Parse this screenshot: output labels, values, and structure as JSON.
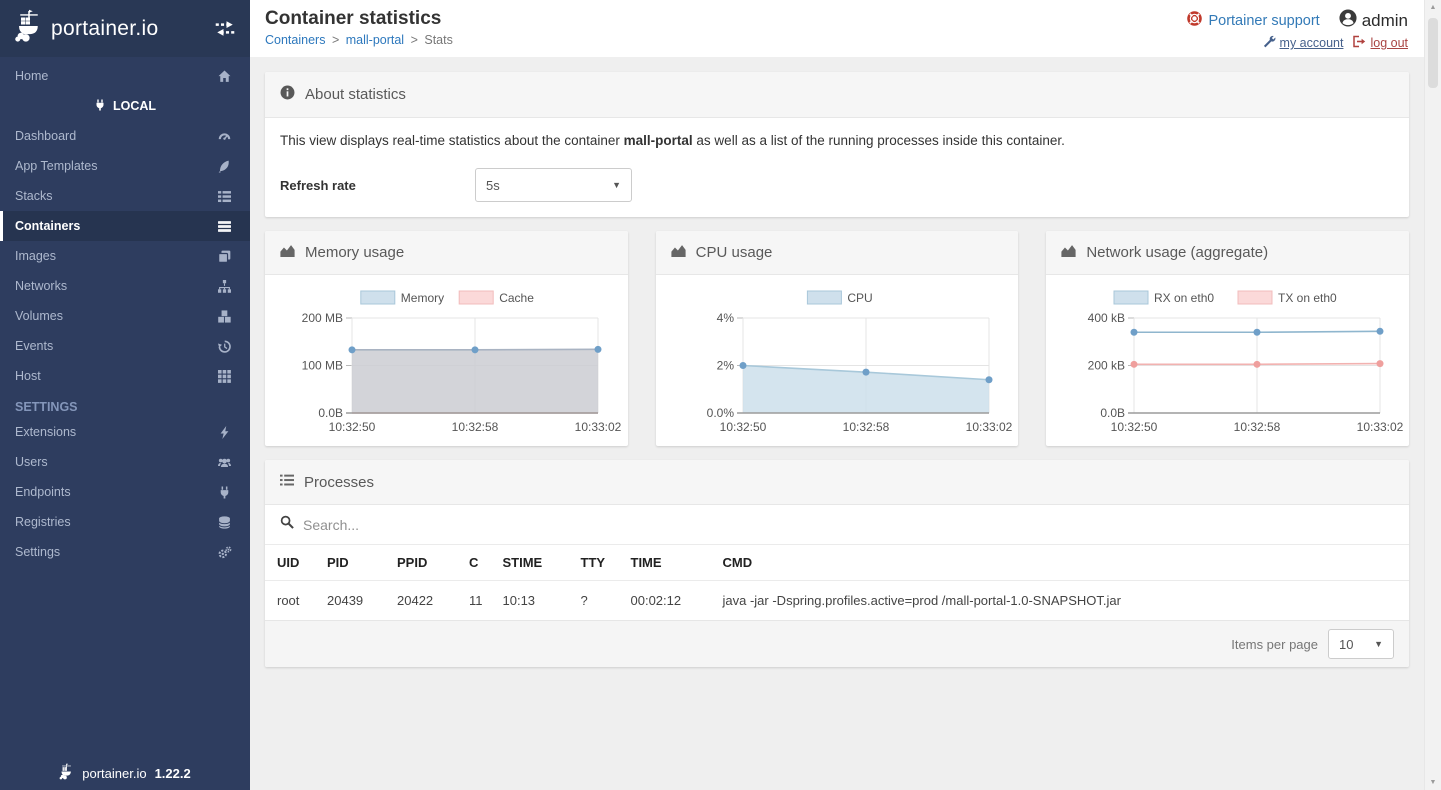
{
  "colors": {
    "sidebar_bg": "#2e3d5f",
    "sidebar_active_bg": "#263450",
    "link_blue": "#337ab7",
    "logout_red": "#a94442",
    "support_red": "#c0392b",
    "panel_header_bg": "#f6f6f6"
  },
  "sidebar": {
    "logo_text": "portainer.io",
    "version": "1.22.2",
    "items": [
      {
        "type": "item",
        "label": "Home",
        "icon": "home"
      },
      {
        "type": "endpoint",
        "label": "LOCAL",
        "icon": "plug"
      },
      {
        "type": "item",
        "label": "Dashboard",
        "icon": "tachometer"
      },
      {
        "type": "item",
        "label": "App Templates",
        "icon": "rocket"
      },
      {
        "type": "item",
        "label": "Stacks",
        "icon": "th-list"
      },
      {
        "type": "item",
        "label": "Containers",
        "icon": "server",
        "active": true
      },
      {
        "type": "item",
        "label": "Images",
        "icon": "copy"
      },
      {
        "type": "item",
        "label": "Networks",
        "icon": "sitemap"
      },
      {
        "type": "item",
        "label": "Volumes",
        "icon": "cubes"
      },
      {
        "type": "item",
        "label": "Events",
        "icon": "history"
      },
      {
        "type": "item",
        "label": "Host",
        "icon": "th"
      },
      {
        "type": "section",
        "label": "SETTINGS"
      },
      {
        "type": "item",
        "label": "Extensions",
        "icon": "bolt"
      },
      {
        "type": "item",
        "label": "Users",
        "icon": "users"
      },
      {
        "type": "item",
        "label": "Endpoints",
        "icon": "plug"
      },
      {
        "type": "item",
        "label": "Registries",
        "icon": "database"
      },
      {
        "type": "item",
        "label": "Settings",
        "icon": "cogs"
      }
    ]
  },
  "header": {
    "title": "Container statistics",
    "breadcrumb": [
      {
        "label": "Containers"
      },
      {
        "label": "mall-portal"
      },
      {
        "label": "Stats"
      }
    ],
    "user": {
      "support_label": "Portainer support",
      "name": "admin",
      "my_account_label": "my account",
      "log_out_label": "log out"
    }
  },
  "about": {
    "title": "About statistics",
    "desc_prefix": "This view displays real-time statistics about the container ",
    "container_name": "mall-portal",
    "desc_suffix": " as well as a list of the running processes inside this container.",
    "refresh_label": "Refresh rate",
    "refresh_value": "5s"
  },
  "chart_data": [
    {
      "type": "area",
      "title": "Memory usage",
      "x": [
        "10:32:50",
        "10:32:58",
        "10:33:02"
      ],
      "ylim": [
        0,
        200
      ],
      "ymax": 200,
      "yticks": [
        {
          "v": 0,
          "label": "0.0B"
        },
        {
          "v": 100,
          "label": "100 MB"
        },
        {
          "v": 200,
          "label": "200 MB"
        }
      ],
      "legend_position": "top",
      "grid": true,
      "series": [
        {
          "name": "Memory",
          "values": [
            133,
            133,
            134
          ],
          "unit": "MB",
          "stroke": "#a9b3c2",
          "fill": "#cbccd2",
          "fill_opacity": 0.85,
          "dot": "#6f9fc8",
          "legend_fill": "#cfe0ec",
          "legend_stroke": "#a9c7da"
        },
        {
          "name": "Cache",
          "values": [
            0,
            0,
            0
          ],
          "unit": "MB",
          "stroke": "#f2b5b5",
          "fill": null,
          "dots": false,
          "legend_fill": "#fbd9d9",
          "legend_stroke": "#f2bcbc"
        }
      ]
    },
    {
      "type": "area",
      "title": "CPU usage",
      "x": [
        "10:32:50",
        "10:32:58",
        "10:33:02"
      ],
      "ylim": [
        0,
        4
      ],
      "ymax": 4,
      "yticks": [
        {
          "v": 0,
          "label": "0.0%"
        },
        {
          "v": 2,
          "label": "2%"
        },
        {
          "v": 4,
          "label": "4%"
        }
      ],
      "legend_position": "top",
      "grid": true,
      "series": [
        {
          "name": "CPU",
          "values": [
            2.0,
            1.72,
            1.4
          ],
          "unit": "%",
          "stroke": "#a8c8da",
          "fill": "#cddfeb",
          "fill_opacity": 0.85,
          "dot": "#6f9fc8",
          "legend_fill": "#cfe0ec",
          "legend_stroke": "#a9c7da"
        }
      ]
    },
    {
      "type": "line",
      "title": "Network usage (aggregate)",
      "x": [
        "10:32:50",
        "10:32:58",
        "10:33:02"
      ],
      "ylim": [
        0,
        400
      ],
      "ymax": 400,
      "yticks": [
        {
          "v": 0,
          "label": "0.0B"
        },
        {
          "v": 200,
          "label": "200 kB"
        },
        {
          "v": 400,
          "label": "400 kB"
        }
      ],
      "legend_position": "top",
      "grid": true,
      "series": [
        {
          "name": "RX on eth0",
          "values": [
            340,
            340,
            344
          ],
          "unit": "kB",
          "stroke": "#8fb6ce",
          "fill": null,
          "dot": "#6f9fc8",
          "legend_fill": "#cfe0ec",
          "legend_stroke": "#a9c7da"
        },
        {
          "name": "TX on eth0",
          "values": [
            205,
            205,
            208
          ],
          "unit": "kB",
          "stroke": "#f2b2b0",
          "fill": null,
          "dot": "#ef9f9d",
          "legend_fill": "#fbd9d9",
          "legend_stroke": "#f2bcbc"
        }
      ]
    }
  ],
  "processes": {
    "title": "Processes",
    "search_placeholder": "Search...",
    "columns": [
      "UID",
      "PID",
      "PPID",
      "C",
      "STIME",
      "TTY",
      "TIME",
      "CMD"
    ],
    "rows": [
      [
        "root",
        "20439",
        "20422",
        "11",
        "10:13",
        "?",
        "00:02:12",
        "java -jar -Dspring.profiles.active=prod /mall-portal-1.0-SNAPSHOT.jar"
      ]
    ],
    "items_per_page_label": "Items per page",
    "items_per_page_value": "10"
  }
}
